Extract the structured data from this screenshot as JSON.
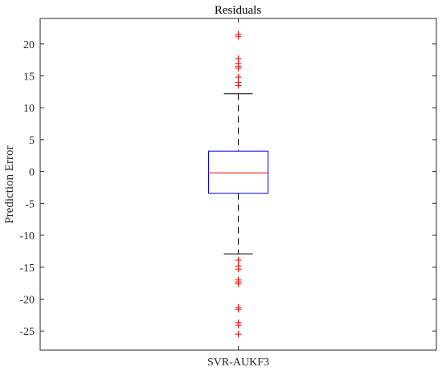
{
  "chart_data": {
    "type": "box",
    "title": "Residuals",
    "xlabel": "",
    "ylabel": "Prediction Error",
    "ylim": [
      -28,
      24
    ],
    "yticks": [
      -25,
      -20,
      -15,
      -10,
      -5,
      0,
      5,
      10,
      15,
      20
    ],
    "grid": false,
    "categories": [
      "SVR-AUKF3"
    ],
    "boxes": [
      {
        "category": "SVR-AUKF3",
        "q1": -3.4,
        "median": -0.2,
        "q3": 3.2,
        "whisker_low": -12.9,
        "whisker_high": 12.2,
        "outliers": [
          21.5,
          21.2,
          17.7,
          16.9,
          16.5,
          16.2,
          14.8,
          14.0,
          13.5,
          -13.9,
          -14.8,
          -15.3,
          -17.0,
          -17.3,
          -17.6,
          -21.3,
          -21.6,
          -23.7,
          -24.1,
          -25.5
        ]
      }
    ],
    "colors": {
      "box": "#0000ff",
      "median": "#ff0000",
      "outlier": "#ff0000",
      "whisker": "#000000",
      "axes": "#262626"
    }
  }
}
